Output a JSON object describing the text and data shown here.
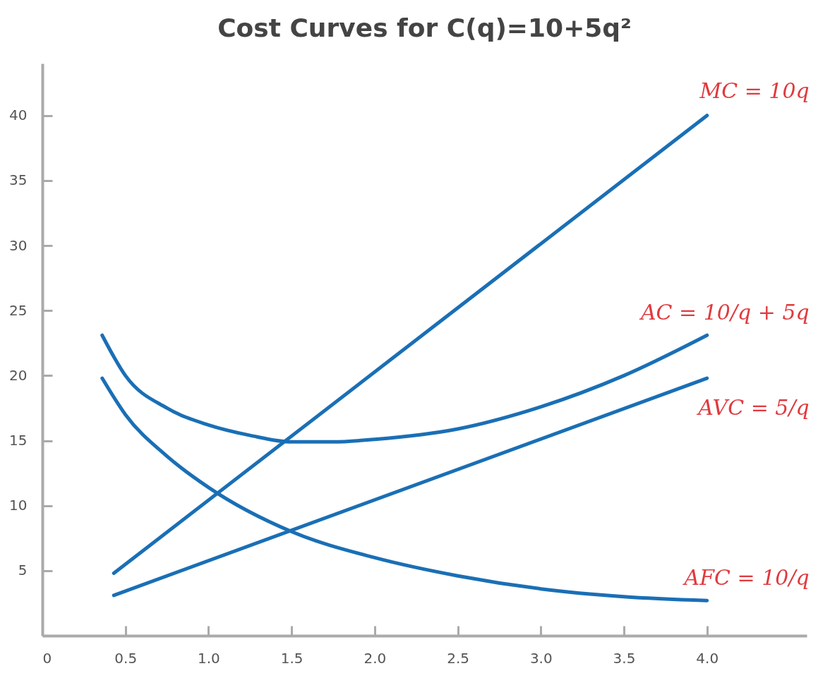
{
  "chart_data": {
    "type": "line",
    "title": "Cost Curves for C(q)=10+5q²",
    "xlim": [
      0,
      4.6
    ],
    "ylim": [
      0,
      44
    ],
    "xticks": [
      0,
      0.5,
      {
        "value": 1,
        "label": "1.0"
      },
      1.5,
      {
        "value": 2,
        "label": "2.0"
      },
      2.5,
      {
        "value": 3,
        "label": "3.0"
      },
      3.5,
      {
        "value": 4,
        "label": "4.0"
      }
    ],
    "yticks": [
      5,
      10,
      15,
      20,
      25,
      30,
      35,
      40
    ],
    "grid": false,
    "legend": false,
    "marker": "none",
    "line_style": "solid",
    "series": [
      {
        "name": "MC = 10q",
        "color": "#1a6fb5",
        "x": [
          0.43,
          4.0
        ],
        "values": [
          4.8,
          40
        ]
      },
      {
        "name": "AC = 10/q + 5q",
        "color": "#1a6fb5",
        "x": [
          0.36,
          0.5,
          0.75,
          1.0,
          1.25,
          1.5,
          1.75,
          2.0,
          2.5,
          3.0,
          3.5,
          4.0
        ],
        "values": [
          23.1,
          20.0,
          17.5,
          16.2,
          15.4,
          14.9,
          14.9,
          15.1,
          15.9,
          17.6,
          20.0,
          23.1
        ]
      },
      {
        "name": "AVC = 5/q",
        "color": "#1a6fb5",
        "x": [
          0.43,
          4.0
        ],
        "values": [
          3.1,
          19.8
        ]
      },
      {
        "name": "AFC = 10/q",
        "color": "#1a6fb5",
        "x": [
          0.36,
          0.5,
          0.75,
          1.0,
          1.5,
          2.0,
          2.5,
          3.0,
          3.5,
          4.0
        ],
        "values": [
          19.8,
          17.0,
          13.8,
          11.4,
          8.0,
          6.0,
          4.6,
          3.6,
          3.0,
          2.7
        ]
      }
    ]
  }
}
